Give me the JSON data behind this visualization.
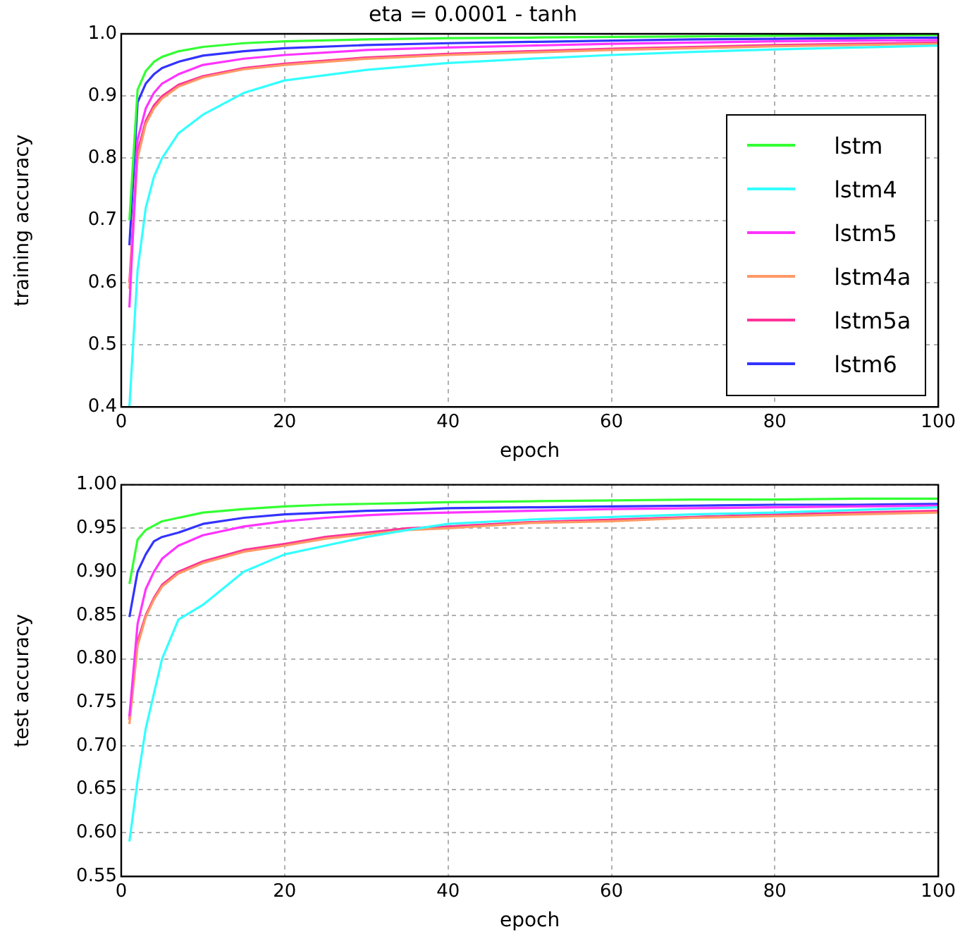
{
  "chart_data": [
    {
      "type": "line",
      "title": "eta = 0.0001 - tanh",
      "xlabel": "epoch",
      "ylabel": "training accuracy",
      "x": [
        1,
        2,
        3,
        4,
        5,
        7,
        10,
        15,
        20,
        30,
        40,
        50,
        60,
        70,
        80,
        90,
        100
      ],
      "xlim": [
        0,
        100
      ],
      "xticks": [
        0,
        20,
        40,
        60,
        80,
        100
      ],
      "ylim": [
        0.4,
        1.0
      ],
      "yticks": [
        0.4,
        0.5,
        0.6,
        0.7,
        0.8,
        0.9,
        {
          "value": 1.0,
          "label": "1.0"
        }
      ],
      "grid": true,
      "legend": "bottom right",
      "series": [
        {
          "name": "lstm",
          "color": "#33ff33",
          "values": [
            0.7,
            0.91,
            0.94,
            0.955,
            0.963,
            0.972,
            0.979,
            0.985,
            0.988,
            0.991,
            0.993,
            0.994,
            0.995,
            0.996,
            0.997,
            0.997,
            0.998
          ]
        },
        {
          "name": "lstm4",
          "color": "#33ffff",
          "values": [
            0.4,
            0.62,
            0.72,
            0.77,
            0.8,
            0.84,
            0.87,
            0.905,
            0.925,
            0.942,
            0.953,
            0.96,
            0.966,
            0.971,
            0.975,
            0.978,
            0.981
          ]
        },
        {
          "name": "lstm5",
          "color": "#ff33ff",
          "values": [
            0.56,
            0.83,
            0.88,
            0.905,
            0.92,
            0.935,
            0.95,
            0.96,
            0.966,
            0.974,
            0.978,
            0.981,
            0.984,
            0.986,
            0.988,
            0.989,
            0.99
          ]
        },
        {
          "name": "lstm4a",
          "color": "#ff9966",
          "values": [
            0.59,
            0.8,
            0.855,
            0.88,
            0.896,
            0.915,
            0.93,
            0.943,
            0.95,
            0.96,
            0.966,
            0.97,
            0.974,
            0.977,
            0.98,
            0.982,
            0.984
          ]
        },
        {
          "name": "lstm5a",
          "color": "#ff3399",
          "values": [
            0.6,
            0.81,
            0.86,
            0.885,
            0.9,
            0.918,
            0.932,
            0.945,
            0.952,
            0.962,
            0.968,
            0.972,
            0.976,
            0.979,
            0.982,
            0.984,
            0.986
          ]
        },
        {
          "name": "lstm6",
          "color": "#3333ff",
          "values": [
            0.66,
            0.89,
            0.92,
            0.935,
            0.945,
            0.955,
            0.965,
            0.972,
            0.977,
            0.982,
            0.985,
            0.987,
            0.989,
            0.991,
            0.992,
            0.993,
            0.994
          ]
        }
      ]
    },
    {
      "type": "line",
      "xlabel": "epoch",
      "ylabel": "test accuracy",
      "x": [
        1,
        2,
        3,
        4,
        5,
        7,
        10,
        15,
        20,
        25,
        30,
        35,
        40,
        50,
        60,
        70,
        80,
        90,
        100
      ],
      "xlim": [
        0,
        100
      ],
      "xticks": [
        0,
        20,
        40,
        60,
        80,
        100
      ],
      "ylim": [
        0.55,
        1.0
      ],
      "yticks": [
        0.55,
        {
          "value": 0.6,
          "label": "0.60"
        },
        0.65,
        {
          "value": 0.7,
          "label": "0.70"
        },
        0.75,
        {
          "value": 0.8,
          "label": "0.80"
        },
        0.85,
        {
          "value": 0.9,
          "label": "0.90"
        },
        0.95,
        {
          "value": 1.0,
          "label": "1.00"
        }
      ],
      "grid": true,
      "series": [
        {
          "color": "#33ff33",
          "values": [
            0.886,
            0.937,
            0.948,
            0.953,
            0.958,
            0.962,
            0.968,
            0.972,
            0.975,
            0.977,
            0.978,
            0.979,
            0.98,
            0.981,
            0.982,
            0.983,
            0.983,
            0.984,
            0.984
          ]
        },
        {
          "color": "#33ffff",
          "values": [
            0.59,
            0.66,
            0.72,
            0.76,
            0.8,
            0.845,
            0.862,
            0.9,
            0.92,
            0.93,
            0.94,
            0.948,
            0.955,
            0.96,
            0.963,
            0.966,
            0.968,
            0.971,
            0.974
          ]
        },
        {
          "color": "#ff33ff",
          "values": [
            0.734,
            0.84,
            0.88,
            0.9,
            0.915,
            0.93,
            0.942,
            0.952,
            0.958,
            0.962,
            0.965,
            0.967,
            0.968,
            0.97,
            0.972,
            0.973,
            0.974,
            0.975,
            0.976
          ]
        },
        {
          "color": "#ff9966",
          "values": [
            0.725,
            0.815,
            0.848,
            0.868,
            0.883,
            0.898,
            0.91,
            0.923,
            0.93,
            0.938,
            0.943,
            0.948,
            0.95,
            0.956,
            0.958,
            0.962,
            0.964,
            0.966,
            0.968
          ]
        },
        {
          "color": "#ff3399",
          "values": [
            0.73,
            0.82,
            0.85,
            0.87,
            0.885,
            0.9,
            0.912,
            0.925,
            0.932,
            0.94,
            0.945,
            0.95,
            0.952,
            0.957,
            0.96,
            0.963,
            0.966,
            0.968,
            0.97
          ]
        },
        {
          "color": "#3333ff",
          "values": [
            0.848,
            0.9,
            0.92,
            0.935,
            0.94,
            0.945,
            0.955,
            0.962,
            0.966,
            0.968,
            0.97,
            0.971,
            0.973,
            0.974,
            0.975,
            0.976,
            0.977,
            0.977,
            0.978
          ]
        }
      ]
    }
  ]
}
